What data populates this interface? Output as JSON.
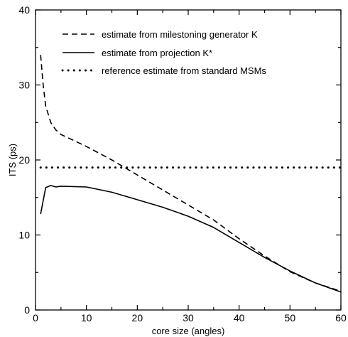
{
  "chart_data": {
    "type": "line",
    "title": "",
    "xlabel": "core size (angles)",
    "ylabel": "ITS (ps)",
    "xlim": [
      0,
      60
    ],
    "ylim": [
      0,
      40
    ],
    "xticks": [
      "0",
      "10",
      "20",
      "30",
      "40",
      "50",
      "60"
    ],
    "yticks": [
      "0",
      "10",
      "20",
      "30",
      "40"
    ],
    "grid": false,
    "legend_position": "top-right",
    "series": [
      {
        "name": "estimate from milestoning generator K",
        "style": "dashed",
        "color": "#000000",
        "x": [
          1,
          1.5,
          2,
          3,
          4,
          5,
          10,
          15,
          20,
          25,
          30,
          35,
          40,
          45,
          50,
          55,
          60
        ],
        "y": [
          34.0,
          30.0,
          27.2,
          25.0,
          24.0,
          23.4,
          21.8,
          20.0,
          18.0,
          16.0,
          14.0,
          12.0,
          9.5,
          7.2,
          5.1,
          3.6,
          2.5
        ]
      },
      {
        "name": "estimate from projection K*",
        "style": "solid",
        "color": "#000000",
        "x": [
          1,
          2,
          3,
          4,
          5,
          10,
          15,
          20,
          25,
          30,
          35,
          40,
          45,
          50,
          55,
          60
        ],
        "y": [
          12.8,
          16.3,
          16.6,
          16.4,
          16.5,
          16.4,
          15.7,
          14.7,
          13.7,
          12.5,
          11.0,
          9.0,
          7.0,
          5.2,
          3.6,
          2.4
        ]
      },
      {
        "name": "reference estimate from standard MSMs",
        "style": "dotted",
        "color": "#000000",
        "x": [
          1,
          60
        ],
        "y": [
          19.0,
          19.0
        ]
      }
    ]
  }
}
